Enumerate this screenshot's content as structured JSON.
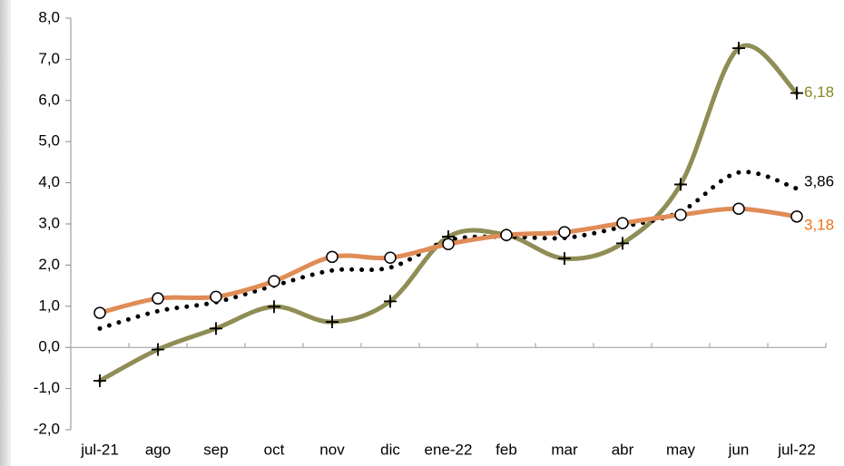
{
  "chart_data": {
    "type": "line",
    "categories": [
      "jul-21",
      "ago",
      "sep",
      "oct",
      "nov",
      "dic",
      "ene-22",
      "feb",
      "mar",
      "abr",
      "may",
      "jun",
      "jul-22"
    ],
    "series": [
      {
        "color": "#8f8d55",
        "marker": "plus",
        "dash": "solid",
        "label_color": "#8a8622",
        "values": [
          -0.81,
          -0.05,
          0.46,
          0.99,
          0.62,
          1.12,
          2.69,
          2.73,
          2.16,
          2.53,
          3.96,
          7.27,
          6.18
        ],
        "value_labels": [
          null,
          null,
          null,
          null,
          null,
          null,
          null,
          null,
          null,
          null,
          null,
          null,
          "6,18"
        ]
      },
      {
        "color": "#000000",
        "marker": "none",
        "dash": "dotted",
        "label_color": "#000000",
        "values": [
          0.46,
          0.88,
          1.1,
          1.5,
          1.87,
          1.94,
          2.6,
          2.69,
          2.66,
          2.93,
          3.3,
          4.25,
          3.86
        ],
        "value_labels": [
          null,
          null,
          null,
          null,
          null,
          null,
          null,
          null,
          null,
          null,
          null,
          null,
          "3,86"
        ]
      },
      {
        "color": "#e08c57",
        "marker": "circle",
        "dash": "solid",
        "label_color": "#e8731e",
        "values": [
          0.84,
          1.19,
          1.23,
          1.61,
          2.2,
          2.18,
          2.51,
          2.73,
          2.8,
          3.02,
          3.22,
          3.37,
          3.18
        ],
        "value_labels": [
          null,
          null,
          null,
          null,
          null,
          null,
          null,
          null,
          null,
          null,
          null,
          null,
          "3,18"
        ]
      }
    ],
    "ylim": [
      -2,
      8
    ],
    "yticks": [
      {
        "value": -2,
        "label": "-2,0"
      },
      {
        "value": -1,
        "label": "-1,0"
      },
      {
        "value": 0,
        "label": "0,0"
      },
      {
        "value": 1,
        "label": "1,0"
      },
      {
        "value": 2,
        "label": "2,0"
      },
      {
        "value": 3,
        "label": "3,0"
      },
      {
        "value": 4,
        "label": "4,0"
      },
      {
        "value": 5,
        "label": "5,0"
      },
      {
        "value": 6,
        "label": "6,0"
      },
      {
        "value": 7,
        "label": "7,0"
      },
      {
        "value": 8,
        "label": "8,0"
      }
    ],
    "grid": false
  }
}
